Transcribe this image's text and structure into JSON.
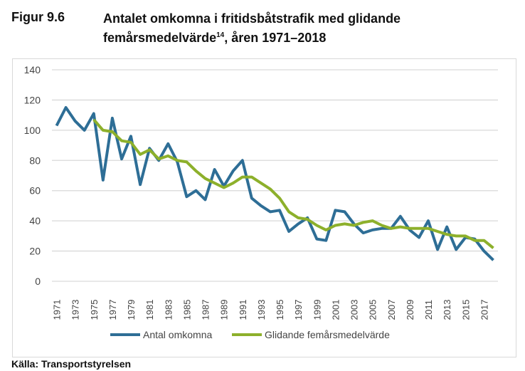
{
  "figure_label": "Figur 9.6",
  "title_main": "Antalet omkomna i fritidsbåtstrafik med glidande femårsmedelvärde",
  "title_sup": "14",
  "title_tail": ", åren 1971–2018",
  "source": "Källa: Transportstyrelsen",
  "chart_data": {
    "type": "line",
    "title": "Antalet omkomna i fritidsbåtstrafik med glidande femårsmedelvärde, åren 1971–2018",
    "xlabel": "",
    "ylabel": "",
    "ylim": [
      0,
      140
    ],
    "yticks": [
      0,
      20,
      40,
      60,
      80,
      100,
      120,
      140
    ],
    "grid": true,
    "legend": "bottom",
    "x": [
      1971,
      1972,
      1973,
      1974,
      1975,
      1976,
      1977,
      1978,
      1979,
      1980,
      1981,
      1982,
      1983,
      1984,
      1985,
      1986,
      1987,
      1988,
      1989,
      1990,
      1991,
      1992,
      1993,
      1994,
      1995,
      1996,
      1997,
      1998,
      1999,
      2000,
      2001,
      2002,
      2003,
      2004,
      2005,
      2006,
      2007,
      2008,
      2009,
      2010,
      2011,
      2012,
      2013,
      2014,
      2015,
      2016,
      2017,
      2018
    ],
    "series": [
      {
        "name": "Antal omkomna",
        "color": "#2e6e96",
        "values": [
          103,
          115,
          106,
          100,
          111,
          67,
          108,
          81,
          96,
          64,
          88,
          80,
          91,
          79,
          56,
          60,
          54,
          74,
          63,
          73,
          80,
          55,
          50,
          46,
          47,
          33,
          38,
          42,
          28,
          27,
          47,
          46,
          38,
          32,
          34,
          35,
          35,
          43,
          34,
          29,
          40,
          21,
          36,
          21,
          29,
          28,
          20,
          14
        ]
      },
      {
        "name": "Glidande femårsmedelvärde",
        "color": "#8db02b",
        "values": [
          null,
          null,
          null,
          null,
          107,
          100,
          99,
          93,
          92,
          84,
          87,
          81,
          83,
          80,
          79,
          73,
          68,
          65,
          62,
          65,
          69,
          69,
          65,
          61,
          55,
          46,
          42,
          41,
          37,
          34,
          37,
          38,
          37,
          39,
          40,
          37,
          35,
          36,
          35,
          35,
          35,
          33,
          31,
          30,
          30,
          27,
          27,
          22
        ]
      }
    ]
  }
}
